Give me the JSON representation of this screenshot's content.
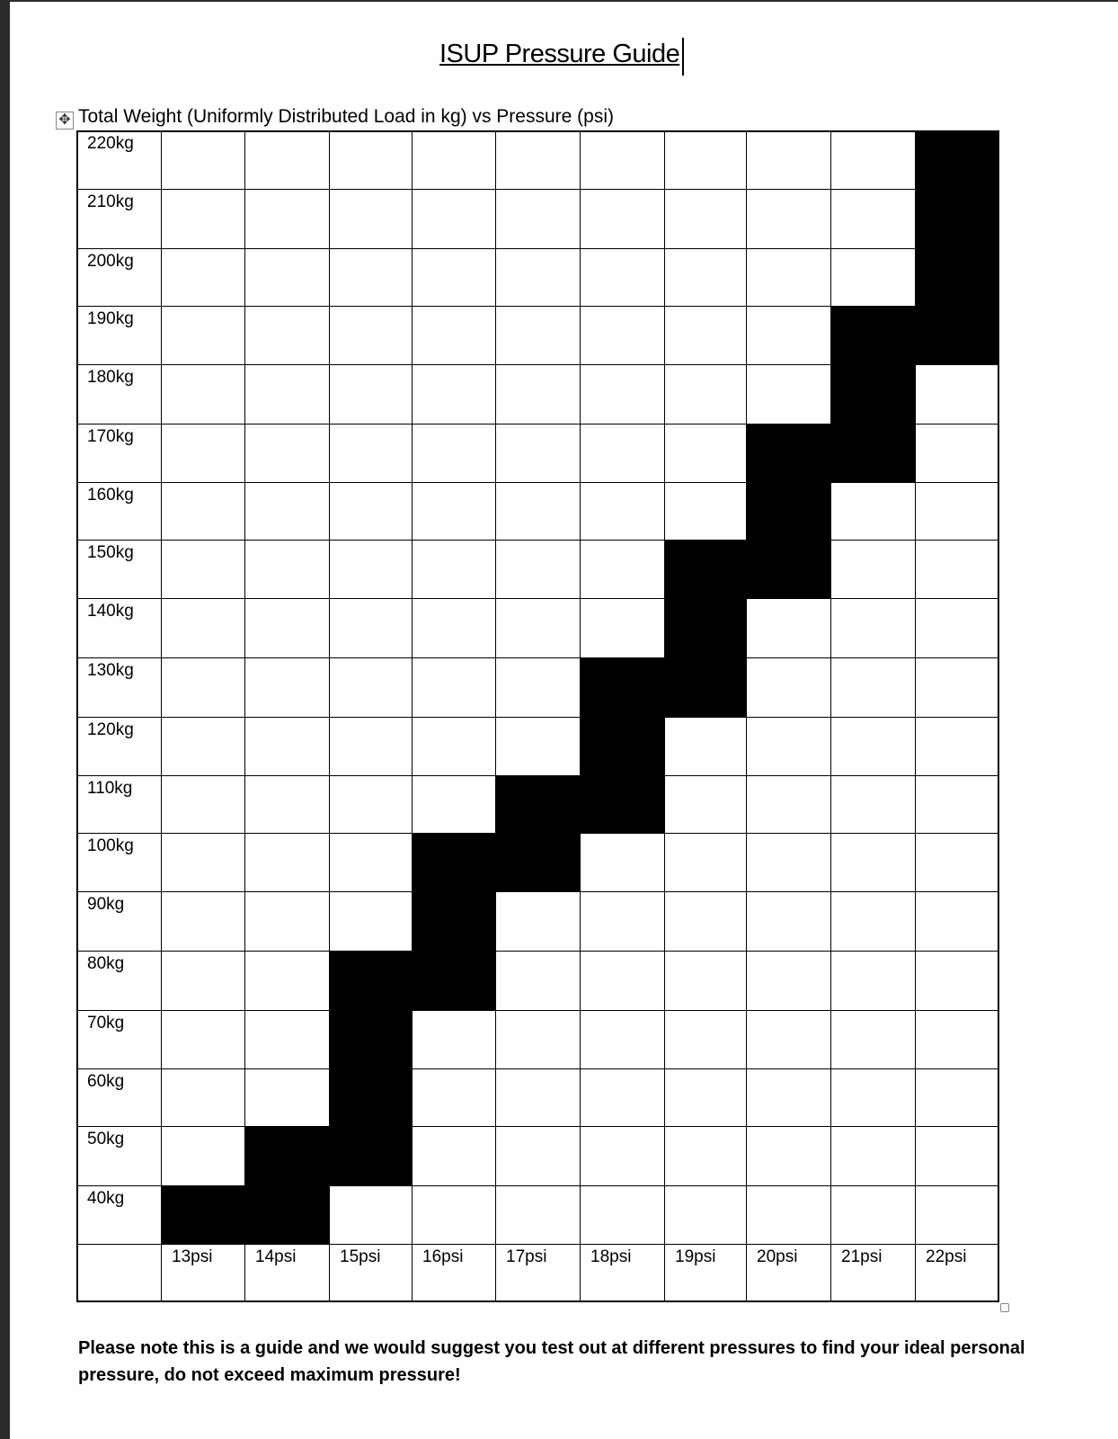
{
  "title": "ISUP Pressure Guide",
  "caption": "Total Weight (Uniformly Distributed Load in kg) vs Pressure (psi)",
  "chart_data": {
    "type": "table",
    "row_labels": [
      "220kg",
      "210kg",
      "200kg",
      "190kg",
      "180kg",
      "170kg",
      "160kg",
      "150kg",
      "140kg",
      "130kg",
      "120kg",
      "110kg",
      "100kg",
      "90kg",
      "80kg",
      "70kg",
      "60kg",
      "50kg",
      "40kg"
    ],
    "column_labels": [
      "13psi",
      "14psi",
      "15psi",
      "16psi",
      "17psi",
      "18psi",
      "19psi",
      "20psi",
      "21psi",
      "22psi"
    ],
    "recommended_kg_by_psi": {
      "13psi": [
        40
      ],
      "14psi": [
        40,
        50
      ],
      "15psi": [
        50,
        60,
        70,
        80
      ],
      "16psi": [
        80,
        90,
        100
      ],
      "17psi": [
        100,
        110
      ],
      "18psi": [
        110,
        120,
        130
      ],
      "19psi": [
        130,
        140,
        150
      ],
      "20psi": [
        150,
        160,
        170
      ],
      "21psi": [
        170,
        180,
        190
      ],
      "22psi": [
        190,
        200,
        210,
        220
      ]
    },
    "fill_color": "#000000"
  },
  "note": "Please note this is a guide and we would suggest you test out at different pressures to find your ideal personal pressure, do not exceed maximum pressure!"
}
